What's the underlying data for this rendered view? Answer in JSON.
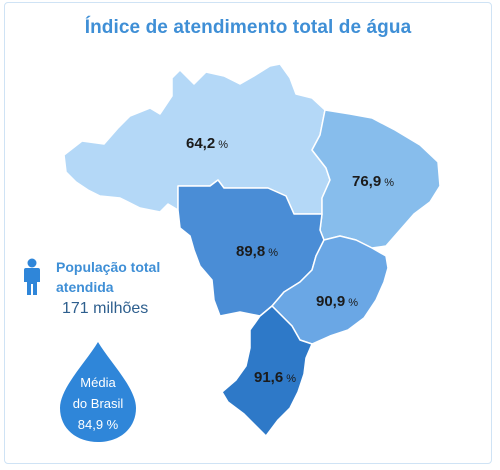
{
  "title": "Índice de atendimento total de água",
  "regions": {
    "norte": {
      "value": "64,2",
      "unit": "%",
      "color": "#b4d8f7"
    },
    "nordeste": {
      "value": "76,9",
      "unit": "%",
      "color": "#87bdec"
    },
    "centro_oeste": {
      "value": "89,8",
      "unit": "%",
      "color": "#4a8dd6"
    },
    "sudeste": {
      "value": "90,9",
      "unit": "%",
      "color": "#6aa7e5"
    },
    "sul": {
      "value": "91,6",
      "unit": "%",
      "color": "#2e79c8"
    }
  },
  "population": {
    "label": "População total atendida",
    "value": "171 milhões",
    "icon": "person-icon"
  },
  "average": {
    "line1": "Média",
    "line2": "do Brasil",
    "value": "84,9 %",
    "icon": "water-drop-icon"
  },
  "colors": {
    "title": "#3f8fd6",
    "accent": "#3f8fd6",
    "drop": "#2f86d9"
  }
}
